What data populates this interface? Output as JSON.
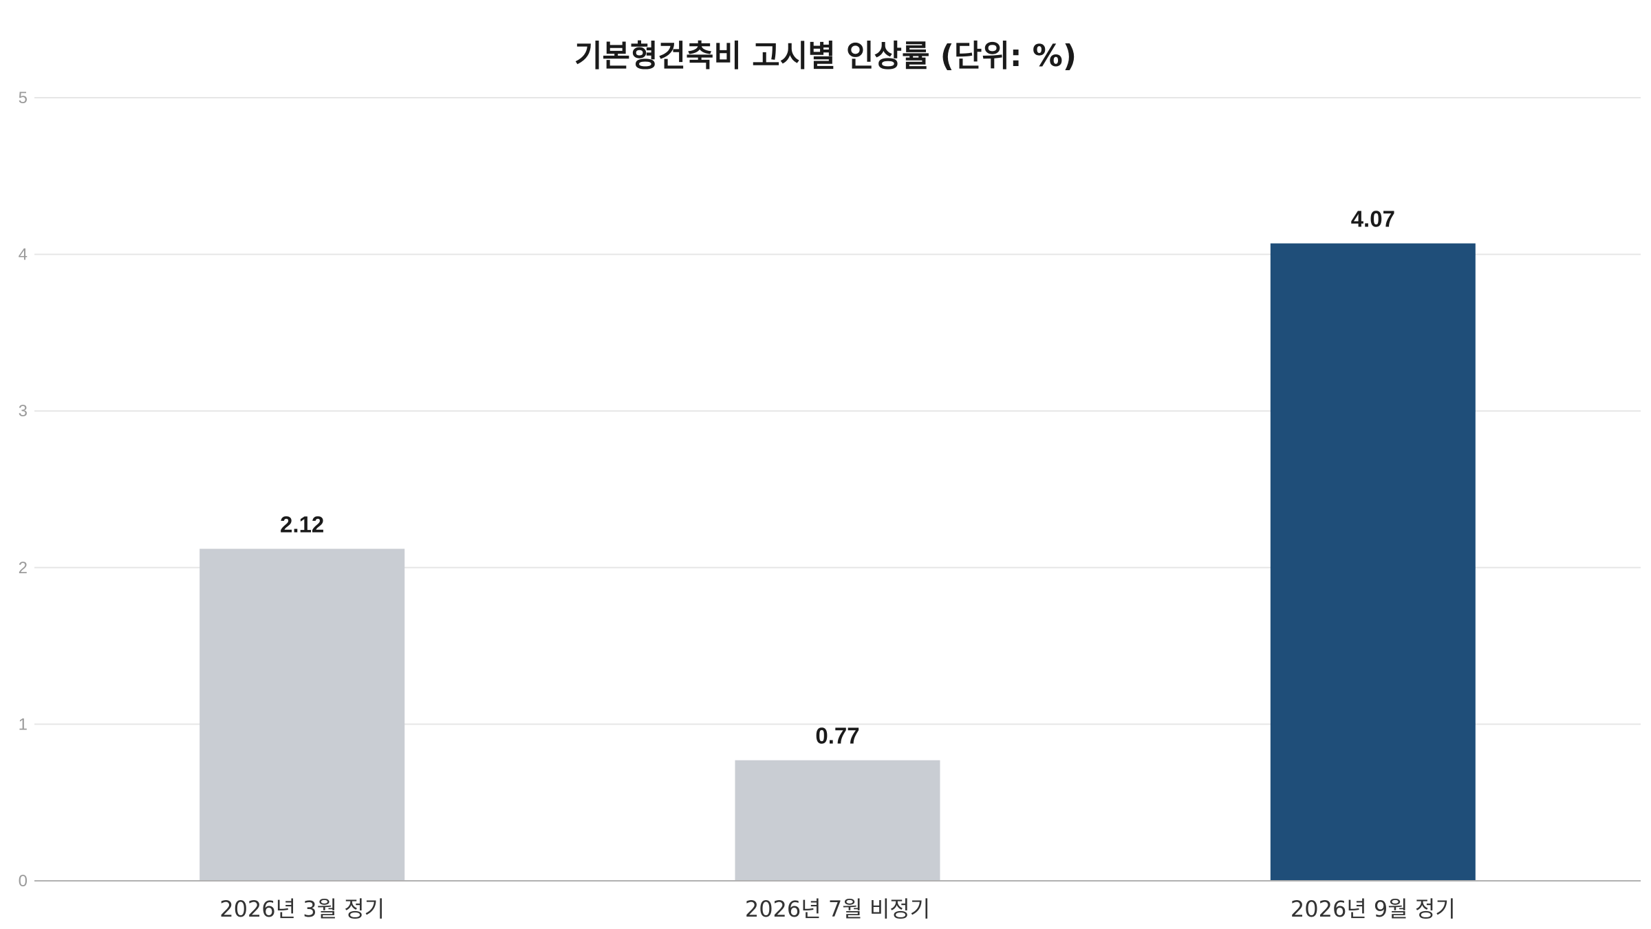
{
  "chart_data": {
    "type": "bar",
    "title": "기본형건축비 고시별 인상률 (단위: %)",
    "xlabel": "",
    "ylabel": "",
    "categories": [
      "2026년 3월 정기",
      "2026년 7월 비정기",
      "2026년 9월 정기"
    ],
    "values": [
      2.12,
      0.77,
      4.07
    ],
    "value_labels": [
      "2.12",
      "0.77",
      "4.07"
    ],
    "ylim": [
      0,
      5
    ],
    "yticks": [
      0,
      1,
      2,
      3,
      4,
      5
    ],
    "ytick_labels": [
      "0",
      "1",
      "2",
      "3",
      "4",
      "5"
    ],
    "grid": true,
    "legend": "none",
    "bar_colors": [
      "#c9cdd3",
      "#c9cdd3",
      "#1f4e79"
    ]
  }
}
